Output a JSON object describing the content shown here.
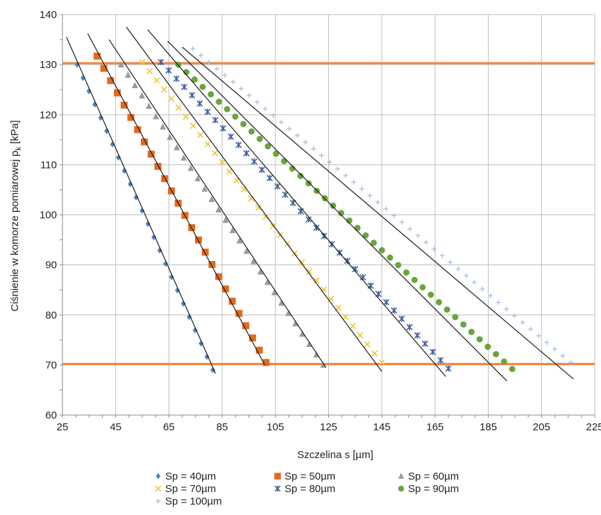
{
  "chart_data": {
    "type": "scatter",
    "xlabel": "Szczelina s [µm]",
    "ylabel_main": "Ciśnienie w komorze pomiarowej p",
    "ylabel_sub": "k",
    "ylabel_unit": " [kPa]",
    "xlim": [
      25,
      225
    ],
    "ylim": [
      60,
      140
    ],
    "x_ticks": [
      25,
      45,
      65,
      85,
      105,
      125,
      145,
      165,
      185,
      205,
      225
    ],
    "y_ticks": [
      60,
      70,
      80,
      90,
      100,
      110,
      120,
      130,
      140
    ],
    "grid": true,
    "legend_position": "bottom",
    "reference_lines": [
      {
        "y": 130.3,
        "color": "#F4843F"
      },
      {
        "y": 70.2,
        "color": "#F4843F"
      }
    ],
    "series": [
      {
        "name": "Sp = 40µm",
        "marker": "diamond",
        "color": "#4F7FBF",
        "x_start": 30.5,
        "y_start": 130,
        "x_end": 81.5,
        "y_end": 69,
        "n": 24,
        "fit": [
          26.5,
          135.5,
          82.5,
          68.3
        ]
      },
      {
        "name": "Sp = 50µm",
        "marker": "square",
        "color": "#E06A1E",
        "x_start": 38,
        "y_start": 131.7,
        "x_end": 101.5,
        "y_end": 70.5,
        "n": 26,
        "fit": [
          34.5,
          136.2,
          101,
          70
        ]
      },
      {
        "name": "Sp = 60µm",
        "marker": "triangle",
        "color": "#9A9A9A",
        "x_start": 47,
        "y_start": 130,
        "x_end": 123,
        "y_end": 70,
        "n": 30,
        "fit": [
          42.5,
          135,
          124,
          69.5
        ]
      },
      {
        "name": "Sp = 70µm",
        "marker": "x",
        "color": "#F2C534",
        "x_start": 55,
        "y_start": 130.5,
        "x_end": 145,
        "y_end": 70.5,
        "n": 34,
        "fit": [
          49,
          137.5,
          145,
          68.7
        ]
      },
      {
        "name": "Sp = 80µm",
        "marker": "star",
        "color": "#3C5F9E",
        "x_start": 62,
        "y_start": 130.5,
        "x_end": 170,
        "y_end": 69.3,
        "n": 38,
        "fit": [
          57,
          137,
          169,
          67.7
        ]
      },
      {
        "name": "Sp = 90µm",
        "marker": "circle",
        "color": "#68A63A",
        "x_start": 68.5,
        "y_start": 130,
        "x_end": 194,
        "y_end": 69.2,
        "n": 42,
        "fit": [
          64.5,
          134.7,
          192,
          66.8
        ]
      },
      {
        "name": "Sp = 100µm",
        "marker": "plus",
        "color": "#A9C1E4",
        "x_start": 74,
        "y_start": 133.2,
        "x_end": 216,
        "y_end": 70.5,
        "n": 48,
        "fit": [
          70,
          133.5,
          217,
          67.2
        ]
      }
    ]
  }
}
